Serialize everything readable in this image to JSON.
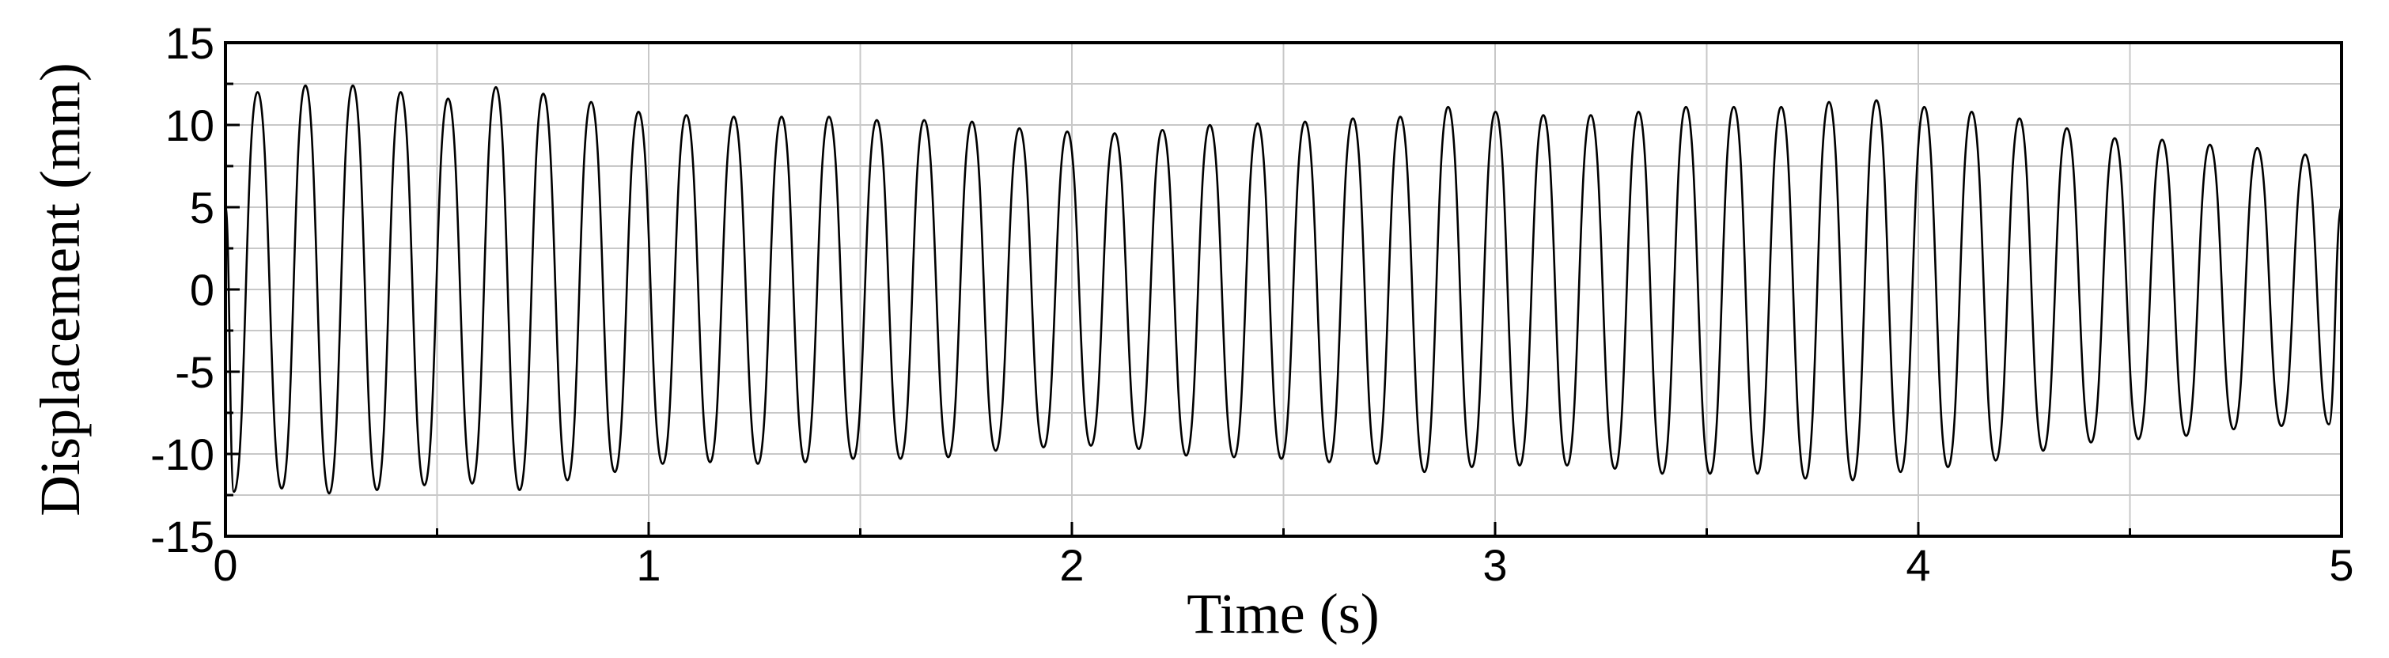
{
  "chart_data": {
    "type": "line",
    "x_label": "Time (s)",
    "y_label": "Displacement (mm)",
    "xlim": [
      0,
      5
    ],
    "ylim": [
      -15,
      15
    ],
    "xticks": [
      0,
      1,
      2,
      3,
      4,
      5
    ],
    "yticks": [
      -15,
      -10,
      -5,
      0,
      5,
      10,
      15
    ],
    "x_minor_ticks": [
      0.5,
      1.5,
      2.5,
      3.5,
      4.5
    ],
    "y_minor_ticks": [
      -12.5,
      -7.5,
      -2.5,
      2.5,
      7.5,
      12.5
    ],
    "grid": true,
    "series": [
      {
        "color": "#000000",
        "x": [
          0,
          0.02,
          0.076,
          0.133,
          0.189,
          0.245,
          0.301,
          0.358,
          0.414,
          0.47,
          0.526,
          0.583,
          0.639,
          0.695,
          0.751,
          0.808,
          0.864,
          0.92,
          0.976,
          1.033,
          1.089,
          1.145,
          1.201,
          1.258,
          1.314,
          1.37,
          1.426,
          1.483,
          1.539,
          1.595,
          1.651,
          1.708,
          1.764,
          1.82,
          1.876,
          1.933,
          1.989,
          2.045,
          2.101,
          2.158,
          2.214,
          2.27,
          2.326,
          2.383,
          2.439,
          2.495,
          2.551,
          2.608,
          2.664,
          2.72,
          2.776,
          2.833,
          2.889,
          2.945,
          3.001,
          3.058,
          3.114,
          3.17,
          3.226,
          3.283,
          3.339,
          3.395,
          3.451,
          3.508,
          3.564,
          3.62,
          3.676,
          3.733,
          3.789,
          3.845,
          3.901,
          3.958,
          4.014,
          4.07,
          4.126,
          4.183,
          4.239,
          4.295,
          4.351,
          4.408,
          4.464,
          4.52,
          4.576,
          4.633,
          4.689,
          4.745,
          4.801,
          4.858,
          4.914,
          4.97,
          5
        ],
        "values": [
          5,
          -12.3,
          12,
          -12.1,
          12.4,
          -12.4,
          12.4,
          -12.2,
          12,
          -11.9,
          11.6,
          -11.8,
          12.3,
          -12.2,
          11.9,
          -11.6,
          11.4,
          -11.1,
          10.8,
          -10.6,
          10.6,
          -10.5,
          10.5,
          -10.6,
          10.5,
          -10.5,
          10.5,
          -10.3,
          10.3,
          -10.3,
          10.3,
          -10.2,
          10.2,
          -9.8,
          9.8,
          -9.6,
          9.6,
          -9.5,
          9.5,
          -9.7,
          9.7,
          -10.1,
          10,
          -10.2,
          10.1,
          -10.3,
          10.2,
          -10.5,
          10.4,
          -10.6,
          10.5,
          -11.1,
          11.1,
          -10.8,
          10.8,
          -10.7,
          10.6,
          -10.7,
          10.6,
          -10.9,
          10.8,
          -11.2,
          11.1,
          -11.2,
          11.1,
          -11.2,
          11.1,
          -11.5,
          11.4,
          -11.6,
          11.5,
          -11.1,
          11.1,
          -10.8,
          10.8,
          -10.4,
          10.4,
          -9.8,
          9.8,
          -9.3,
          9.2,
          -9.1,
          9.1,
          -8.9,
          8.8,
          -8.5,
          8.6,
          -8.3,
          8.2,
          -8.2,
          5
        ]
      }
    ]
  }
}
